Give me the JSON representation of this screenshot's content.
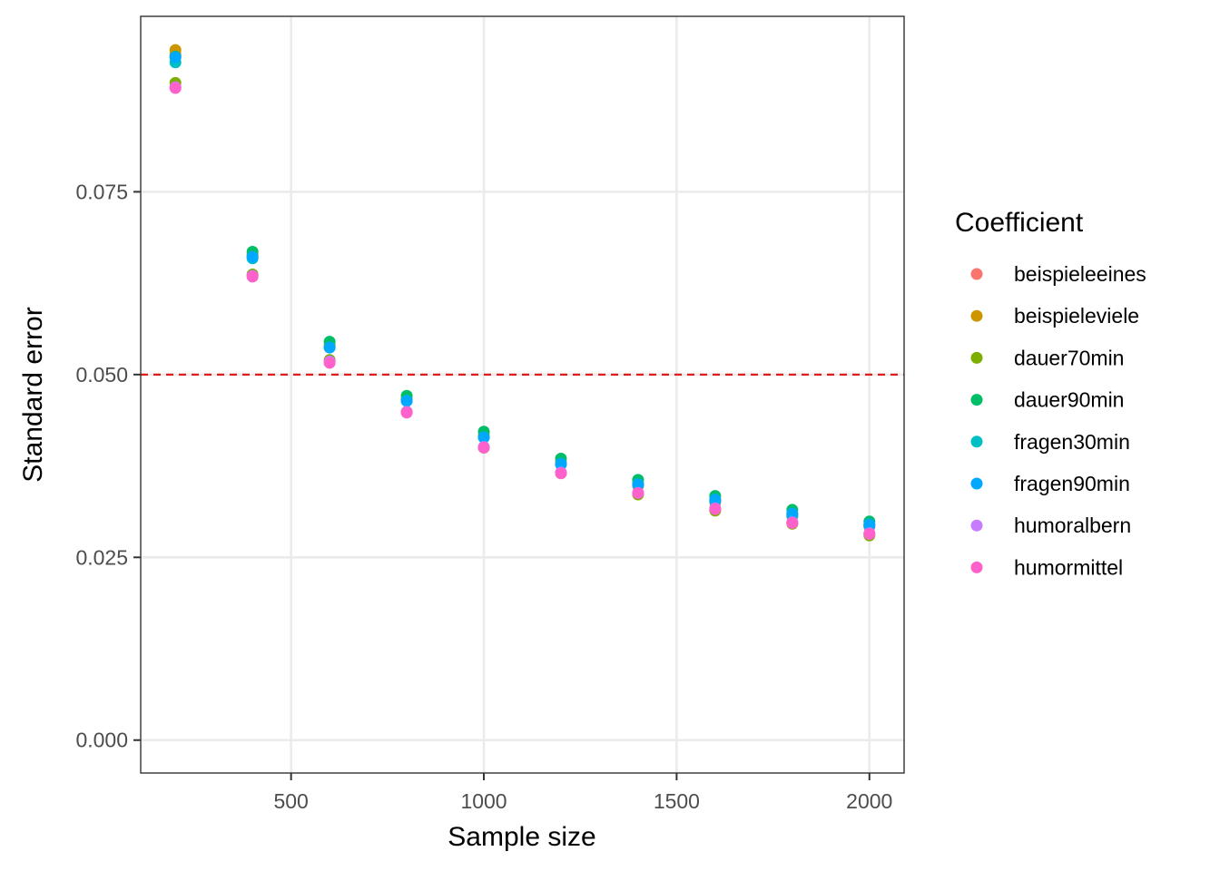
{
  "chart_data": {
    "type": "scatter",
    "xlabel": "Sample size",
    "ylabel": "Standard error",
    "xlim": [
      110,
      2090
    ],
    "ylim": [
      -0.0045,
      0.099
    ],
    "x_ticks": [
      500,
      1000,
      1500,
      2000
    ],
    "x_tick_labels": [
      "500",
      "1000",
      "1500",
      "2000"
    ],
    "y_ticks": [
      0.0,
      0.025,
      0.05,
      0.075
    ],
    "y_tick_labels": [
      "0.000",
      "0.025",
      "0.050",
      "0.075"
    ],
    "grid": true,
    "reference_line": {
      "y": 0.05,
      "color": "#e31a1c",
      "style": "dashed"
    },
    "x": [
      200,
      400,
      600,
      800,
      1000,
      1200,
      1400,
      1600,
      1800,
      2000
    ],
    "legend": {
      "title": "Coefficient",
      "position": "right"
    },
    "series": [
      {
        "name": "beispieleeines",
        "color": "#F8766D",
        "values": [
          0.0938,
          0.0662,
          0.0538,
          0.0465,
          0.0415,
          0.0378,
          0.0348,
          0.0325,
          0.0306,
          0.0292
        ]
      },
      {
        "name": "beispieleviele",
        "color": "#CD9600",
        "values": [
          0.0944,
          0.0664,
          0.054,
          0.0467,
          0.0417,
          0.038,
          0.0351,
          0.0328,
          0.0309,
          0.0294
        ]
      },
      {
        "name": "dauer70min",
        "color": "#7CAE00",
        "values": [
          0.0899,
          0.0637,
          0.052,
          0.0449,
          0.04,
          0.0365,
          0.0336,
          0.0314,
          0.0296,
          0.028
        ]
      },
      {
        "name": "dauer90min",
        "color": "#00BE67",
        "values": [
          0.0935,
          0.0668,
          0.0545,
          0.0471,
          0.0422,
          0.0385,
          0.0356,
          0.0334,
          0.0315,
          0.0299
        ]
      },
      {
        "name": "fragen30min",
        "color": "#00BFC4",
        "values": [
          0.0927,
          0.0659,
          0.0537,
          0.0464,
          0.0414,
          0.0377,
          0.0349,
          0.0327,
          0.0307,
          0.0293
        ]
      },
      {
        "name": "fragen90min",
        "color": "#00A9FF",
        "values": [
          0.0934,
          0.0661,
          0.0537,
          0.0464,
          0.0414,
          0.0378,
          0.035,
          0.0329,
          0.031,
          0.0295
        ]
      },
      {
        "name": "humoralbern",
        "color": "#C77CFF",
        "values": [
          0.0893,
          0.0635,
          0.0518,
          0.0449,
          0.0401,
          0.0366,
          0.0338,
          0.0317,
          0.0298,
          0.0283
        ]
      },
      {
        "name": "humormittel",
        "color": "#FF61CC",
        "values": [
          0.0892,
          0.0634,
          0.0516,
          0.0448,
          0.04,
          0.0365,
          0.0338,
          0.0316,
          0.0297,
          0.0282
        ]
      }
    ]
  }
}
